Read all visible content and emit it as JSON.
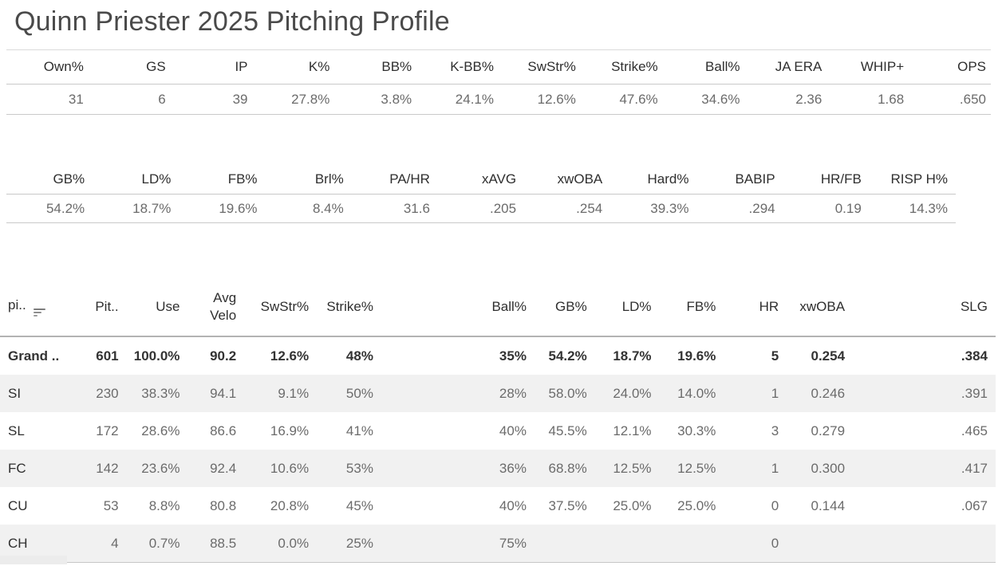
{
  "title": "Quinn Priester 2025 Pitching Profile",
  "summary_primary": {
    "columns": [
      "Own%",
      "GS",
      "IP",
      "K%",
      "BB%",
      "K-BB%",
      "SwStr%",
      "Strike%",
      "Ball%",
      "JA ERA",
      "WHIP+",
      "OPS"
    ],
    "values": [
      "31",
      "6",
      "39",
      "27.8%",
      "3.8%",
      "24.1%",
      "12.6%",
      "47.6%",
      "34.6%",
      "2.36",
      "1.68",
      ".650"
    ]
  },
  "summary_batted_ball": {
    "columns": [
      "GB%",
      "LD%",
      "FB%",
      "Brl%",
      "PA/HR",
      "xAVG",
      "xwOBA",
      "Hard%",
      "BABIP",
      "HR/FB",
      "RISP H%"
    ],
    "values": [
      "54.2%",
      "18.7%",
      "19.6%",
      "8.4%",
      "31.6",
      ".205",
      ".254",
      "39.3%",
      ".294",
      "0.19",
      "14.3%"
    ]
  },
  "pitch_table": {
    "row_header_label": "pi..",
    "sort_icon": "sort-descending-icon",
    "columns": [
      "Pit..",
      "Use",
      "Avg Velo",
      "SwStr%",
      "Strike%",
      "Ball%",
      "GB%",
      "LD%",
      "FB%",
      "HR",
      "xwOBA",
      "SLG"
    ],
    "rows": [
      {
        "label": "Grand ..",
        "bold": true,
        "values": [
          "601",
          "100.0%",
          "90.2",
          "12.6%",
          "48%",
          "35%",
          "54.2%",
          "18.7%",
          "19.6%",
          "5",
          "0.254",
          ".384"
        ]
      },
      {
        "label": "SI",
        "bold": false,
        "values": [
          "230",
          "38.3%",
          "94.1",
          "9.1%",
          "50%",
          "28%",
          "58.0%",
          "24.0%",
          "14.0%",
          "1",
          "0.246",
          ".391"
        ]
      },
      {
        "label": "SL",
        "bold": false,
        "values": [
          "172",
          "28.6%",
          "86.6",
          "16.9%",
          "41%",
          "40%",
          "45.5%",
          "12.1%",
          "30.3%",
          "3",
          "0.279",
          ".465"
        ]
      },
      {
        "label": "FC",
        "bold": false,
        "values": [
          "142",
          "23.6%",
          "92.4",
          "10.6%",
          "53%",
          "36%",
          "68.8%",
          "12.5%",
          "12.5%",
          "1",
          "0.300",
          ".417"
        ]
      },
      {
        "label": "CU",
        "bold": false,
        "values": [
          "53",
          "8.8%",
          "80.8",
          "20.8%",
          "45%",
          "40%",
          "37.5%",
          "25.0%",
          "25.0%",
          "0",
          "0.144",
          ".067"
        ]
      },
      {
        "label": "CH",
        "bold": false,
        "values": [
          "4",
          "0.7%",
          "88.5",
          "0.0%",
          "25%",
          "75%",
          "",
          "",
          "",
          "0",
          "",
          ""
        ]
      }
    ]
  },
  "colors": {
    "title_text": "#4a4a4a",
    "header_text": "#2f2f2f",
    "value_text": "#6b6b6b",
    "divider": "#c9c9c9",
    "table_header_border": "#b3b3b3",
    "alt_row_bg": "#f1f1f1"
  },
  "chart_data": [
    {
      "type": "table",
      "title": "Season summary",
      "columns": [
        "Own%",
        "GS",
        "IP",
        "K%",
        "BB%",
        "K-BB%",
        "SwStr%",
        "Strike%",
        "Ball%",
        "JA ERA",
        "WHIP+",
        "OPS"
      ],
      "rows": [
        [
          "31",
          "6",
          "39",
          "27.8%",
          "3.8%",
          "24.1%",
          "12.6%",
          "47.6%",
          "34.6%",
          "2.36",
          "1.68",
          ".650"
        ]
      ]
    },
    {
      "type": "table",
      "title": "Batted ball summary",
      "columns": [
        "GB%",
        "LD%",
        "FB%",
        "Brl%",
        "PA/HR",
        "xAVG",
        "xwOBA",
        "Hard%",
        "BABIP",
        "HR/FB",
        "RISP H%"
      ],
      "rows": [
        [
          "54.2%",
          "18.7%",
          "19.6%",
          "8.4%",
          "31.6",
          ".205",
          ".254",
          "39.3%",
          ".294",
          "0.19",
          "14.3%"
        ]
      ]
    },
    {
      "type": "table",
      "title": "By pitch type",
      "columns": [
        "pi..",
        "Pit..",
        "Use",
        "Avg Velo",
        "SwStr%",
        "Strike%",
        "Ball%",
        "GB%",
        "LD%",
        "FB%",
        "HR",
        "xwOBA",
        "SLG"
      ],
      "rows": [
        [
          "Grand ..",
          "601",
          "100.0%",
          "90.2",
          "12.6%",
          "48%",
          "35%",
          "54.2%",
          "18.7%",
          "19.6%",
          "5",
          "0.254",
          ".384"
        ],
        [
          "SI",
          "230",
          "38.3%",
          "94.1",
          "9.1%",
          "50%",
          "28%",
          "58.0%",
          "24.0%",
          "14.0%",
          "1",
          "0.246",
          ".391"
        ],
        [
          "SL",
          "172",
          "28.6%",
          "86.6",
          "16.9%",
          "41%",
          "40%",
          "45.5%",
          "12.1%",
          "30.3%",
          "3",
          "0.279",
          ".465"
        ],
        [
          "FC",
          "142",
          "23.6%",
          "92.4",
          "10.6%",
          "53%",
          "36%",
          "68.8%",
          "12.5%",
          "12.5%",
          "1",
          "0.300",
          ".417"
        ],
        [
          "CU",
          "53",
          "8.8%",
          "80.8",
          "20.8%",
          "45%",
          "40%",
          "37.5%",
          "25.0%",
          "25.0%",
          "0",
          "0.144",
          ".067"
        ],
        [
          "CH",
          "4",
          "0.7%",
          "88.5",
          "0.0%",
          "25%",
          "75%",
          "",
          "",
          "",
          "0",
          "",
          ""
        ]
      ]
    }
  ]
}
